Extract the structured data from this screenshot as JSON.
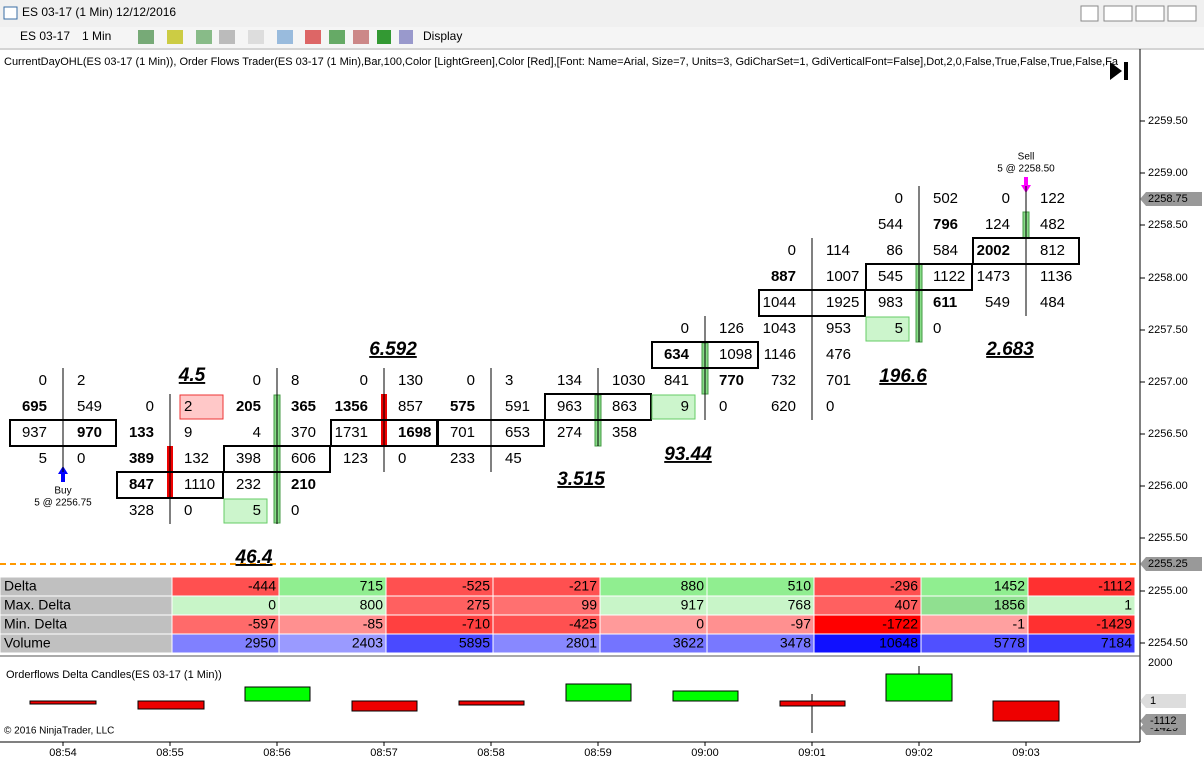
{
  "window": {
    "title": "ES 03-17 (1 Min)  12/12/2016"
  },
  "toolbar": {
    "instrument": "ES 03-17",
    "interval": "1 Min",
    "display": "Display"
  },
  "indicator_label": "CurrentDayOHL(ES 03-17 (1 Min)),  Order Flows Trader(ES 03-17 (1 Min),Bar,100,Color [LightGreen],Color [Red],[Font: Name=Arial, Size=7, Units=3, GdiCharSet=1, GdiVerticalFont=False],Dot,2,0,False,True,False,True,False,Fa",
  "price_axis": {
    "ticks": [
      "2259.50",
      "2259.00",
      "2258.50",
      "2258.00",
      "2257.50",
      "2257.00",
      "2256.50",
      "2256.00",
      "2255.50",
      "2255.00",
      "2254.50"
    ],
    "last_price": "2258.75",
    "line_price": "2255.25"
  },
  "footprint": {
    "bars": [
      {
        "rows": [
          [
            0,
            2
          ],
          [
            695,
            549
          ],
          [
            937,
            970
          ],
          [
            5,
            0
          ]
        ]
      },
      {
        "rows": [
          [
            0,
            2
          ],
          [
            133,
            9
          ],
          [
            389,
            132
          ],
          [
            847,
            1110
          ],
          [
            328,
            0
          ]
        ]
      },
      {
        "rows": [
          [
            0,
            8
          ],
          [
            205,
            365
          ],
          [
            4,
            370
          ],
          [
            398,
            606
          ],
          [
            232,
            210
          ],
          [
            5,
            0
          ]
        ]
      },
      {
        "rows": [
          [
            0,
            130
          ],
          [
            1356,
            857
          ],
          [
            1731,
            1698
          ],
          [
            123,
            0
          ]
        ]
      },
      {
        "rows": [
          [
            0,
            3
          ],
          [
            575,
            591
          ],
          [
            701,
            653
          ],
          [
            233,
            45
          ]
        ]
      },
      {
        "rows": [
          [
            134,
            1030
          ],
          [
            963,
            863
          ],
          [
            274,
            358
          ]
        ]
      },
      {
        "rows": [
          [
            0,
            126
          ],
          [
            634,
            1098
          ],
          [
            841,
            770
          ],
          [
            9,
            0
          ]
        ]
      },
      {
        "rows": [
          [
            0,
            114
          ],
          [
            887,
            1007
          ],
          [
            1044,
            1925
          ],
          [
            1043,
            953
          ],
          [
            1146,
            476
          ],
          [
            732,
            701
          ],
          [
            620,
            0
          ]
        ]
      },
      {
        "rows": [
          [
            0,
            502
          ],
          [
            544,
            796
          ],
          [
            86,
            584
          ],
          [
            545,
            1122
          ],
          [
            983,
            611
          ],
          [
            5,
            0
          ]
        ]
      },
      {
        "rows": [
          [
            0,
            122
          ],
          [
            124,
            482
          ],
          [
            2002,
            812
          ],
          [
            1473,
            1136
          ],
          [
            549,
            484
          ]
        ]
      }
    ],
    "annotations": [
      "4.5",
      "46.4",
      "6.592",
      "3.515",
      "93.44",
      "196.6",
      "2.683"
    ]
  },
  "orders": {
    "buy": {
      "label": "Buy",
      "detail": "5 @ 2256.75"
    },
    "sell": {
      "label": "Sell",
      "detail": "5 @ 2258.50"
    }
  },
  "table": {
    "row_labels": [
      "Delta",
      "Max. Delta",
      "Min. Delta",
      "Volume"
    ],
    "rows": [
      [
        -444,
        715,
        -525,
        -217,
        880,
        510,
        -296,
        1452,
        -1112
      ],
      [
        0,
        800,
        275,
        99,
        917,
        768,
        407,
        1856,
        1
      ],
      [
        -597,
        -85,
        -710,
        -425,
        0,
        -97,
        -1722,
        -1,
        -1429
      ],
      [
        2950,
        2403,
        5895,
        2801,
        3622,
        3478,
        10648,
        5778,
        7184
      ]
    ]
  },
  "lower_panel": {
    "title": "Orderflows Delta Candles(ES 03-17 (1 Min))",
    "axis": [
      "2000"
    ],
    "tags": [
      "1",
      "-1112",
      "-1429"
    ]
  },
  "time_axis": [
    "08:54",
    "08:55",
    "08:56",
    "08:57",
    "08:58",
    "08:59",
    "09:00",
    "09:01",
    "09:02",
    "09:03"
  ],
  "copyright": "© 2016 NinjaTrader, LLC"
}
